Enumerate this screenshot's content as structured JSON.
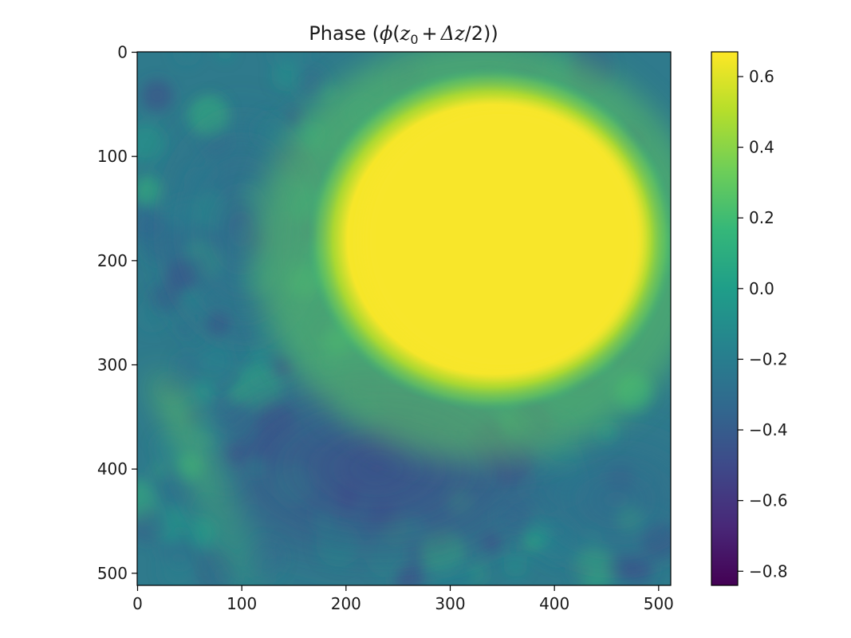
{
  "chart_data": {
    "type": "heatmap",
    "title": {
      "text": "Phase (",
      "symbol": "ϕ",
      "open_paren": "(",
      "var_z": "z",
      "subscript": "0",
      "plus": "+",
      "delta_z": "Δz",
      "over_two": "/2",
      "close": "))"
    },
    "colormap": "viridis",
    "colormap_stops": [
      "#440154",
      "#482878",
      "#3e4989",
      "#31688e",
      "#26828e",
      "#1f9e89",
      "#35b779",
      "#6ece58",
      "#b5de2b",
      "#fde725"
    ],
    "x_range": [
      0,
      511
    ],
    "y_range": [
      0,
      511
    ],
    "y_inverted": true,
    "x_ticks": [
      0,
      100,
      200,
      300,
      400,
      500
    ],
    "y_ticks": [
      0,
      100,
      200,
      300,
      400,
      500
    ],
    "x_tick_labels": [
      "0",
      "100",
      "200",
      "300",
      "400",
      "500"
    ],
    "y_tick_labels": [
      "0",
      "100",
      "200",
      "300",
      "400",
      "500"
    ],
    "color_range": [
      -0.84,
      0.67
    ],
    "colorbar_ticks": [
      0.6,
      0.4,
      0.2,
      0.0,
      -0.2,
      -0.4,
      -0.6,
      -0.8
    ],
    "colorbar_tick_labels": [
      "0.6",
      "0.4",
      "0.2",
      "0.0",
      "−0.2",
      "−0.4",
      "−0.6",
      "−0.8"
    ],
    "features": {
      "background_value": -0.1,
      "bright_region": {
        "center_x": 340,
        "center_y": 180,
        "rx": 150,
        "ry": 140,
        "value": 0.67
      },
      "dark_regions": [
        {
          "center_x": 230,
          "center_y": 400,
          "value": -0.4
        },
        {
          "center_x": 100,
          "center_y": 170,
          "value": -0.3
        },
        {
          "center_x": 460,
          "center_y": 430,
          "value": -0.25
        }
      ],
      "light_streak": {
        "from": [
          20,
          330
        ],
        "to": [
          100,
          500
        ],
        "value": 0.15
      }
    }
  }
}
